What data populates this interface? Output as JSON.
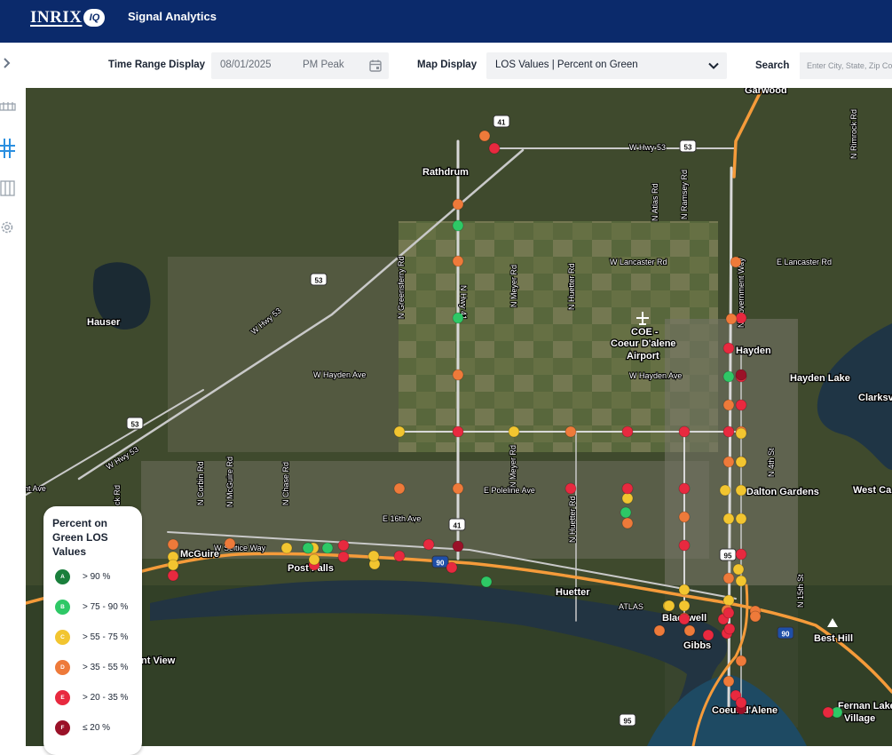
{
  "header": {
    "logo_text": "INRIX",
    "logo_badge": "IQ",
    "app_title": "Signal Analytics"
  },
  "toolbar": {
    "time_range_label": "Time Range Display",
    "date_value": "08/01/2025",
    "period_value": "PM Peak",
    "map_display_label": "Map Display",
    "map_display_value": "LOS Values | Percent on Green",
    "search_label": "Search",
    "search_placeholder": "Enter City, State, Zip Code"
  },
  "sidebar": {
    "icons": [
      "collapse-chevron-icon",
      "corridor-icon",
      "intersection-icon",
      "signals-grid-icon",
      "settings-gear-icon"
    ]
  },
  "colors": {
    "header_bg": "#0b2a6b",
    "A": "#1a7f3c",
    "B": "#2ec866",
    "C": "#f2c530",
    "D": "#ee7a3a",
    "E": "#e8293f",
    "F": "#9a1128",
    "road_highway": "#f59b3a",
    "road_major": "#d8d8d8"
  },
  "map": {
    "place_labels": [
      "Garwood",
      "Rathdrum",
      "Hauser",
      "COE -",
      "Coeur D'alene",
      "Airport",
      "Hayden",
      "Hayden Lake",
      "Clarksv",
      "Dalton Gardens",
      "West Ca",
      "Post Falls",
      "McGuire",
      "Huetter",
      "Blackwell",
      "Gibbs",
      "Coeur d'Alene",
      "Fernan Lake",
      "Village",
      "Best Hill",
      "nt View",
      "poka"
    ],
    "road_labels": [
      "W Hwy 53",
      "N Rimrock Rd",
      "N Atlas Rd",
      "N Ramsey Rd",
      "W Lancaster Rd",
      "E Lancaster Rd",
      "N Government Way",
      "N Greensferry Rd",
      "N Meyer Rd",
      "N Huetter Rd",
      "W Hayden Ave",
      "N Hwy 41",
      "N Corbin Rd",
      "N McGuire Rd",
      "N Chase Rd",
      "E Poleline Ave",
      "E 16th Ave",
      "W Seltice Way",
      "N 4th St",
      "N 15th St",
      "ATLAS",
      "rent Ave",
      "ck Rd",
      "W Hwy 53"
    ],
    "shields": [
      "41",
      "53",
      "53",
      "53",
      "41",
      "90",
      "95",
      "90",
      "95"
    ],
    "signals": [
      {
        "los": "D",
        "col": "D"
      },
      {
        "los": "E",
        "col": "E"
      },
      {
        "los": "D",
        "col": "D"
      },
      {
        "los": "B",
        "col": "B"
      },
      {
        "los": "D",
        "col": "D"
      },
      {
        "los": "B",
        "col": "B"
      },
      {
        "los": "D",
        "col": "D"
      },
      {
        "los": "E",
        "col": "E"
      },
      {
        "los": "D",
        "col": "D"
      },
      {
        "los": "C",
        "col": "C"
      },
      {
        "los": "C",
        "col": "C"
      },
      {
        "los": "D",
        "col": "D"
      },
      {
        "los": "E",
        "col": "E"
      },
      {
        "los": "E",
        "col": "E"
      },
      {
        "los": "D",
        "col": "D"
      },
      {
        "los": "E",
        "col": "E"
      },
      {
        "los": "D",
        "col": "D"
      },
      {
        "los": "E",
        "col": "E"
      },
      {
        "los": "E",
        "col": "E"
      },
      {
        "los": "B",
        "col": "B"
      },
      {
        "los": "D",
        "col": "D"
      },
      {
        "los": "E",
        "col": "E"
      },
      {
        "los": "E",
        "col": "E"
      },
      {
        "los": "D",
        "col": "D"
      },
      {
        "los": "E",
        "col": "E"
      },
      {
        "los": "D",
        "col": "D"
      },
      {
        "los": "C",
        "col": "C"
      },
      {
        "los": "C",
        "col": "C"
      },
      {
        "los": "C",
        "col": "C"
      },
      {
        "los": "C",
        "col": "C"
      },
      {
        "los": "C",
        "col": "C"
      },
      {
        "los": "F",
        "col": "F"
      },
      {
        "los": "C",
        "col": "C"
      },
      {
        "los": "E",
        "col": "E"
      },
      {
        "los": "D",
        "col": "D"
      },
      {
        "los": "E",
        "col": "E"
      },
      {
        "los": "C",
        "col": "C"
      },
      {
        "los": "C",
        "col": "C"
      },
      {
        "los": "D",
        "col": "D"
      },
      {
        "los": "C",
        "col": "C"
      },
      {
        "los": "C",
        "col": "C"
      },
      {
        "los": "D",
        "col": "D"
      },
      {
        "los": "D",
        "col": "D"
      },
      {
        "los": "E",
        "col": "E"
      },
      {
        "los": "E",
        "col": "E"
      },
      {
        "los": "E",
        "col": "E"
      },
      {
        "los": "E",
        "col": "E"
      },
      {
        "los": "D",
        "col": "D"
      },
      {
        "los": "D",
        "col": "D"
      },
      {
        "los": "E",
        "col": "E"
      },
      {
        "los": "B",
        "col": "B"
      },
      {
        "los": "A",
        "col": "A"
      },
      {
        "los": "B",
        "col": "B"
      },
      {
        "los": "C",
        "col": "C"
      },
      {
        "los": "C",
        "col": "C"
      },
      {
        "los": "E",
        "col": "E"
      },
      {
        "los": "E",
        "col": "E"
      },
      {
        "los": "E",
        "col": "E"
      },
      {
        "los": "C",
        "col": "C"
      },
      {
        "los": "E",
        "col": "E"
      },
      {
        "los": "C",
        "col": "C"
      },
      {
        "los": "F",
        "col": "F"
      },
      {
        "los": "E",
        "col": "E"
      },
      {
        "los": "B",
        "col": "B"
      },
      {
        "los": "D",
        "col": "D"
      },
      {
        "los": "C",
        "col": "C"
      },
      {
        "los": "D",
        "col": "D"
      },
      {
        "los": "E",
        "col": "E"
      },
      {
        "los": "E",
        "col": "E"
      },
      {
        "los": "D",
        "col": "D"
      },
      {
        "los": "C",
        "col": "C"
      },
      {
        "los": "E",
        "col": "E"
      },
      {
        "los": "C",
        "col": "C"
      },
      {
        "los": "D",
        "col": "D"
      },
      {
        "los": "C",
        "col": "C"
      },
      {
        "los": "B",
        "col": "B"
      },
      {
        "los": "E",
        "col": "E"
      },
      {
        "los": "C",
        "col": "C"
      },
      {
        "los": "D",
        "col": "D"
      },
      {
        "los": "C",
        "col": "C"
      },
      {
        "los": "C",
        "col": "C"
      },
      {
        "los": "E",
        "col": "E"
      },
      {
        "los": "F",
        "col": "F"
      },
      {
        "los": "E",
        "col": "E"
      },
      {
        "los": "D",
        "col": "D"
      },
      {
        "los": "D",
        "col": "D"
      },
      {
        "los": "E",
        "col": "E"
      },
      {
        "los": "B",
        "col": "B"
      },
      {
        "los": "E",
        "col": "E"
      },
      {
        "los": "D",
        "col": "D"
      },
      {
        "los": "E",
        "col": "E"
      }
    ]
  },
  "legend": {
    "title": "Percent on Green LOS Values",
    "items": [
      {
        "grade": "A",
        "label": "> 90 %"
      },
      {
        "grade": "B",
        "label": "> 75 - 90 %"
      },
      {
        "grade": "C",
        "label": "> 55 - 75 %"
      },
      {
        "grade": "D",
        "label": "> 35 - 55 %"
      },
      {
        "grade": "E",
        "label": "> 20 - 35 %"
      },
      {
        "grade": "F",
        "label": "≤ 20 %"
      }
    ]
  }
}
